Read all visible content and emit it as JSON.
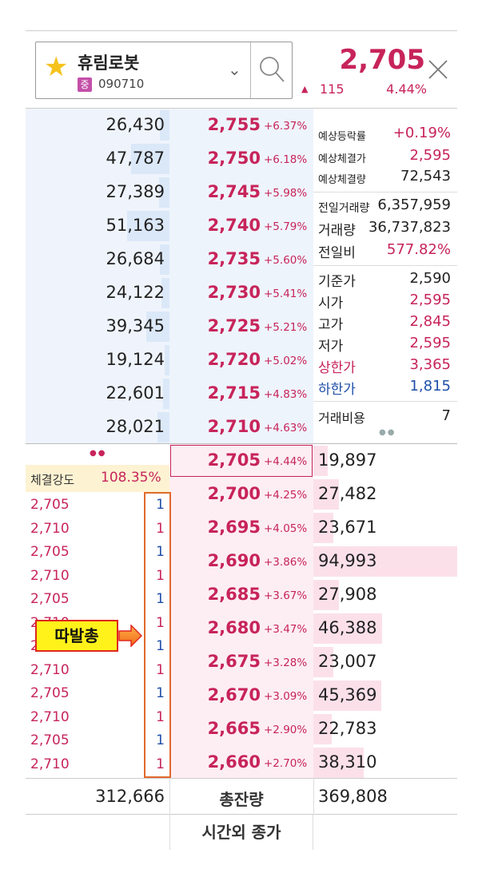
{
  "header": {
    "stock_name": "휴림로봇",
    "market_badge": "중",
    "stock_code": "090710",
    "current_price": "2,705",
    "change_amount": "115",
    "change_rate": "4.44%",
    "star_color": "#f5c21b",
    "accent_color": "#c7245a"
  },
  "asks": [
    {
      "vol": "26,430",
      "price": "2,755",
      "rate": "+6.37%",
      "bar": 0.12
    },
    {
      "vol": "47,787",
      "price": "2,750",
      "rate": "+6.18%",
      "bar": 0.5
    },
    {
      "vol": "27,389",
      "price": "2,745",
      "rate": "+5.98%",
      "bar": 0.14
    },
    {
      "vol": "51,163",
      "price": "2,740",
      "rate": "+5.79%",
      "bar": 0.55
    },
    {
      "vol": "26,684",
      "price": "2,735",
      "rate": "+5.60%",
      "bar": 0.12
    },
    {
      "vol": "24,122",
      "price": "2,730",
      "rate": "+5.41%",
      "bar": 0.1
    },
    {
      "vol": "39,345",
      "price": "2,725",
      "rate": "+5.21%",
      "bar": 0.3
    },
    {
      "vol": "19,124",
      "price": "2,720",
      "rate": "+5.02%",
      "bar": 0.06
    },
    {
      "vol": "22,601",
      "price": "2,715",
      "rate": "+4.83%",
      "bar": 0.08
    },
    {
      "vol": "28,021",
      "price": "2,710",
      "rate": "+4.63%",
      "bar": 0.16
    }
  ],
  "bids": [
    {
      "vol": "19,897",
      "price": "2,705",
      "rate": "+4.44%",
      "bar": 0.1
    },
    {
      "vol": "27,482",
      "price": "2,700",
      "rate": "+4.25%",
      "bar": 0.18
    },
    {
      "vol": "23,671",
      "price": "2,695",
      "rate": "+4.05%",
      "bar": 0.14
    },
    {
      "vol": "94,993",
      "price": "2,690",
      "rate": "+3.86%",
      "bar": 1.0
    },
    {
      "vol": "27,908",
      "price": "2,685",
      "rate": "+3.67%",
      "bar": 0.18
    },
    {
      "vol": "46,388",
      "price": "2,680",
      "rate": "+3.47%",
      "bar": 0.48
    },
    {
      "vol": "23,007",
      "price": "2,675",
      "rate": "+3.28%",
      "bar": 0.14
    },
    {
      "vol": "45,369",
      "price": "2,670",
      "rate": "+3.09%",
      "bar": 0.47
    },
    {
      "vol": "22,783",
      "price": "2,665",
      "rate": "+2.90%",
      "bar": 0.13
    },
    {
      "vol": "38,310",
      "price": "2,660",
      "rate": "+2.70%",
      "bar": 0.35
    }
  ],
  "info": {
    "exp_rate_label": "예상등락률",
    "exp_rate": "+0.19%",
    "exp_price_label": "예상체결가",
    "exp_price": "2,595",
    "exp_vol_label": "예상체결량",
    "exp_vol": "72,543",
    "prev_vol_label": "전일거래량",
    "prev_vol": "6,357,959",
    "vol_label": "거래량",
    "vol": "36,737,823",
    "vs_prev_label": "전일비",
    "vs_prev": "577.82%",
    "base_label": "기준가",
    "base": "2,590",
    "open_label": "시가",
    "open": "2,595",
    "high_label": "고가",
    "high": "2,845",
    "low_label": "저가",
    "low": "2,595",
    "upper_label": "상한가",
    "upper": "3,365",
    "lower_label": "하한가",
    "lower": "1,815",
    "fee_label": "거래비용",
    "fee": "7"
  },
  "strength": {
    "label": "체결강도",
    "value": "108.35%"
  },
  "ticks": [
    {
      "price": "2,705",
      "qty": "1",
      "side": "buy"
    },
    {
      "price": "2,710",
      "qty": "1",
      "side": "sell"
    },
    {
      "price": "2,705",
      "qty": "1",
      "side": "buy"
    },
    {
      "price": "2,710",
      "qty": "1",
      "side": "sell"
    },
    {
      "price": "2,705",
      "qty": "1",
      "side": "buy"
    },
    {
      "price": "2,710",
      "qty": "1",
      "side": "sell"
    },
    {
      "price": "2,705",
      "qty": "1",
      "side": "buy"
    },
    {
      "price": "2,710",
      "qty": "1",
      "side": "sell"
    },
    {
      "price": "2,705",
      "qty": "1",
      "side": "buy"
    },
    {
      "price": "2,710",
      "qty": "1",
      "side": "sell"
    },
    {
      "price": "2,705",
      "qty": "1",
      "side": "buy"
    },
    {
      "price": "2,710",
      "qty": "1",
      "side": "sell"
    }
  ],
  "annotation": {
    "label": "따발총"
  },
  "footer": {
    "total_ask": "312,666",
    "total_label": "총잔량",
    "total_bid": "369,808",
    "afterhours": "시간외 종가"
  }
}
